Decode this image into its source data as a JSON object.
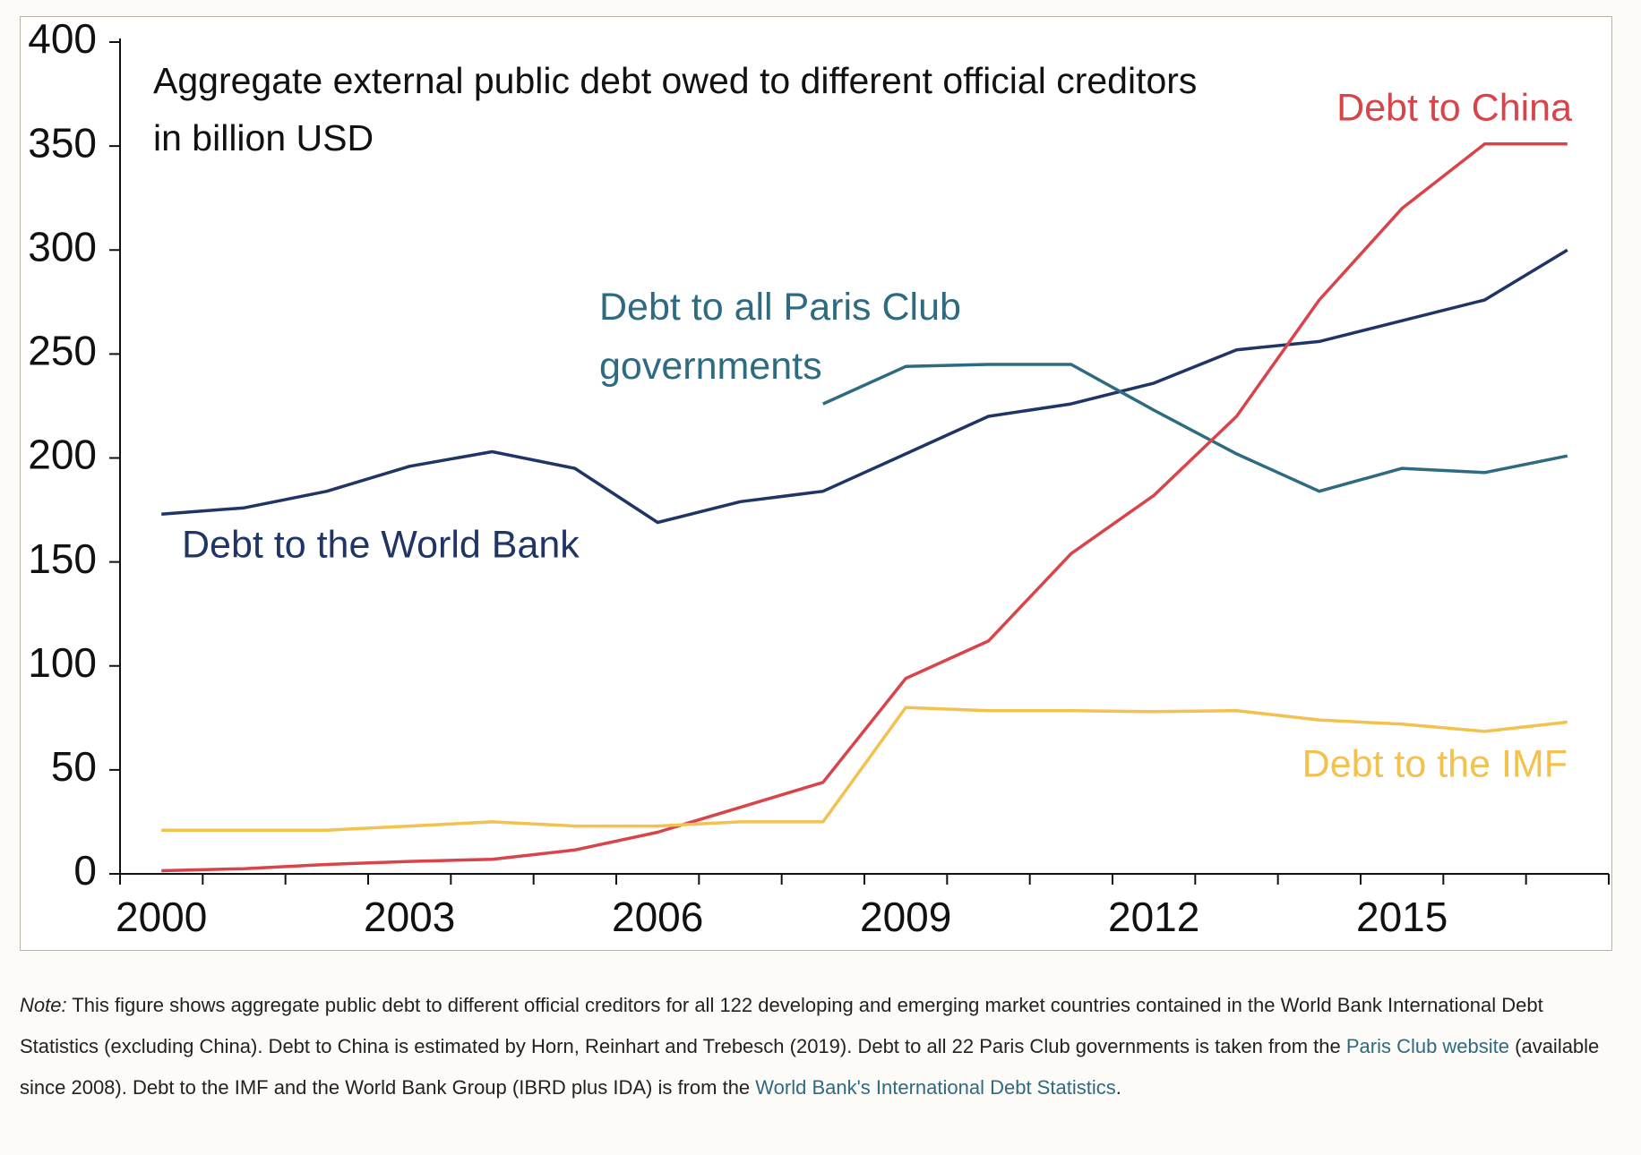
{
  "chart_data": {
    "type": "line",
    "title": "Aggregate external public debt owed to different official creditors in billion USD",
    "categories": [
      "2000",
      null,
      null,
      "2003",
      null,
      null,
      "2006",
      null,
      null,
      "2009",
      null,
      null,
      "2012",
      null,
      null,
      "2015",
      null,
      null
    ],
    "series": [
      {
        "name": "Debt to the World Bank",
        "color": "#1f3566",
        "values": [
          173,
          176,
          184,
          196,
          203,
          195,
          169,
          179,
          184,
          202,
          220,
          226,
          236,
          252,
          256,
          266,
          276,
          300
        ]
      },
      {
        "name": "Debt to all Paris Club governments",
        "color": "#2e6b80",
        "values": [
          null,
          null,
          null,
          null,
          null,
          null,
          null,
          null,
          226,
          244,
          245,
          245,
          223,
          202,
          184,
          195,
          193,
          201
        ]
      },
      {
        "name": "Debt to China",
        "color": "#d9434a",
        "values": [
          1.5,
          2.5,
          4.5,
          6,
          7,
          11.5,
          20,
          32,
          44,
          94,
          112,
          154,
          182,
          220,
          276,
          320,
          351,
          351
        ]
      },
      {
        "name": "Debt to the IMF",
        "color": "#f2c14e",
        "values": [
          21,
          21,
          21,
          23,
          25,
          23,
          23,
          25,
          25,
          80,
          78.5,
          78.5,
          78,
          78.5,
          74,
          72,
          68.5,
          73
        ]
      }
    ],
    "ylim": [
      0,
      400
    ],
    "yticks": [
      0,
      50,
      100,
      150,
      200,
      250,
      300,
      350,
      400
    ],
    "grid": false
  },
  "note": {
    "label": "Note:",
    "text1": " This figure shows aggregate public debt to different official creditors for all 122 developing and emerging market countries contained in the World Bank International Debt Statistics (excluding China). Debt to China is estimated by Horn, Reinhart and Trebesch (2019). Debt to all 22 Paris Club governments is taken from the ",
    "link1": "Paris Club website",
    "text2": " (available since 2008). Debt to the IMF and the World Bank Group (IBRD plus IDA) is from the ",
    "link2": "World Bank's International Debt Statistics",
    "text3": "."
  }
}
